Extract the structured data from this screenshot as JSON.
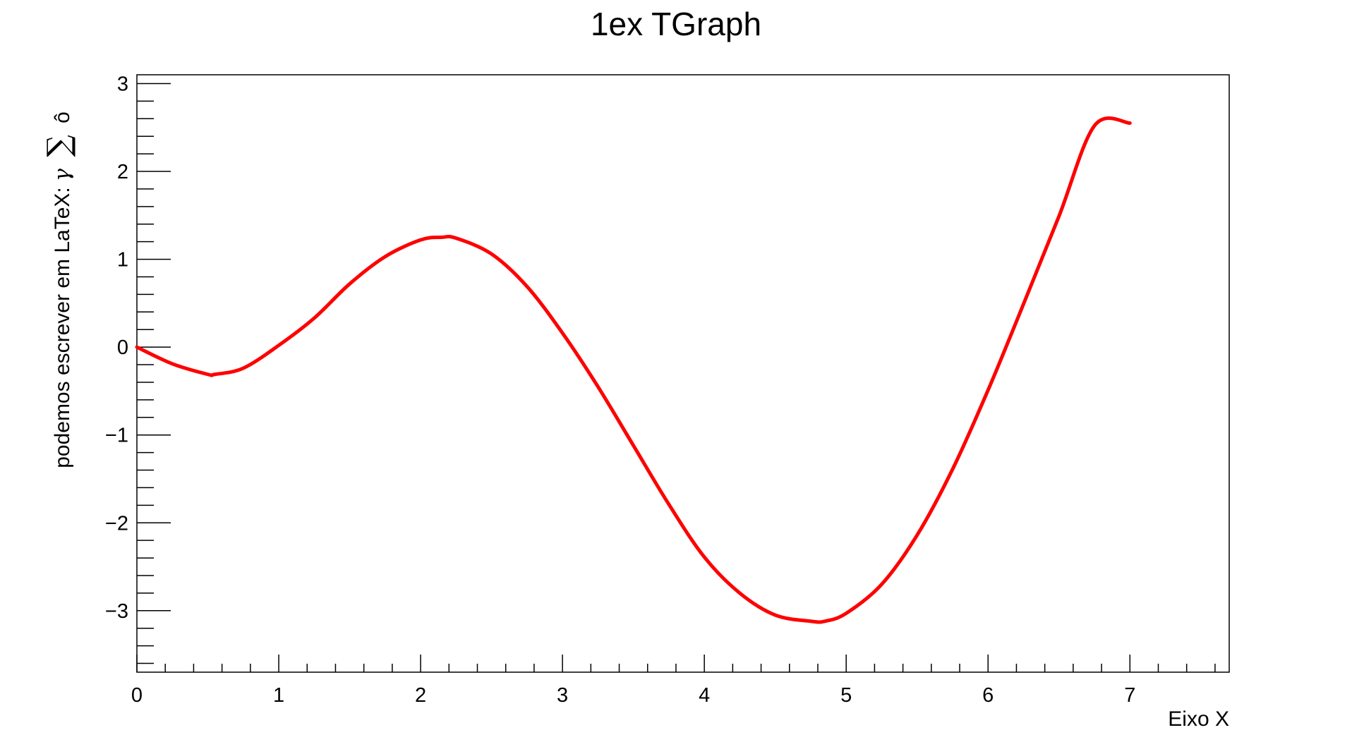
{
  "chart_data": {
    "type": "line",
    "title": "1ex TGraph",
    "xlabel": "Eixo X",
    "ylabel": {
      "text": "podemos escrever em LaTeX: ",
      "gamma": "γ",
      "sigma": "∑",
      "ohat": "ô"
    },
    "xlim": [
      0,
      7.7
    ],
    "ylim": [
      -3.7,
      3.1
    ],
    "x_ticks": [
      "0",
      "1",
      "2",
      "3",
      "4",
      "5",
      "6",
      "7"
    ],
    "y_ticks": [
      "−3",
      "−2",
      "−1",
      "0",
      "1",
      "2",
      "3"
    ],
    "grid": false,
    "series": [
      {
        "color": "#ff0000",
        "x": [
          0,
          0.25,
          0.5,
          0.55,
          0.75,
          1.0,
          1.25,
          1.5,
          1.75,
          2.0,
          2.15,
          2.25,
          2.5,
          2.75,
          3.0,
          3.25,
          3.5,
          3.75,
          4.0,
          4.25,
          4.5,
          4.75,
          4.85,
          5.0,
          5.25,
          5.5,
          5.75,
          6.0,
          6.25,
          6.5,
          6.75,
          7.0
        ],
        "y": [
          0,
          -0.19,
          -0.31,
          -0.31,
          -0.24,
          0.02,
          0.33,
          0.72,
          1.03,
          1.22,
          1.25,
          1.24,
          1.06,
          0.69,
          0.16,
          -0.45,
          -1.12,
          -1.79,
          -2.39,
          -2.8,
          -3.05,
          -3.12,
          -3.12,
          -3.03,
          -2.7,
          -2.14,
          -1.39,
          -0.49,
          0.49,
          1.49,
          2.52,
          2.55
        ]
      }
    ]
  }
}
